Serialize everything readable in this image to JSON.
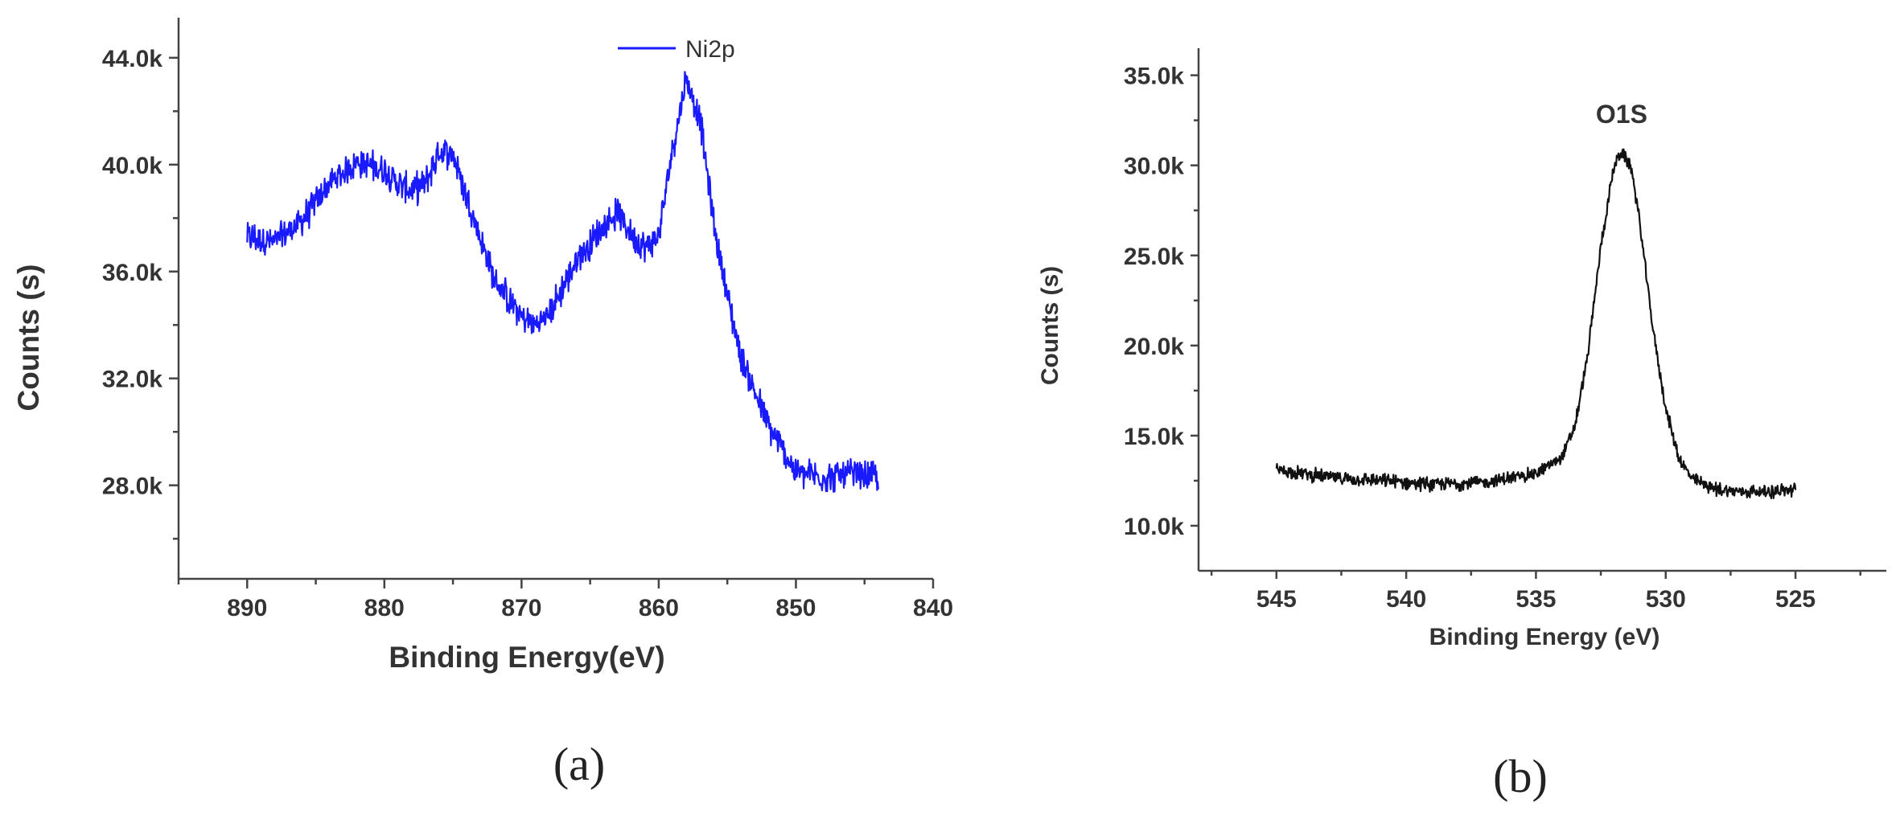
{
  "chart_data": [
    {
      "type": "line",
      "panel_label": "(a)",
      "title": "",
      "xlabel": "Binding Energy(eV)",
      "ylabel": "Counts (s)",
      "xlim": [
        895,
        840
      ],
      "ylim": [
        24500,
        45500
      ],
      "x_ticks": [
        890,
        880,
        870,
        860,
        850,
        840
      ],
      "y_ticks": [
        28000,
        32000,
        36000,
        40000,
        44000
      ],
      "y_tick_labels": [
        "28.0k",
        "32.0k",
        "36.0k",
        "40.0k",
        "44.0k"
      ],
      "legend_position": "top-right",
      "series": [
        {
          "name": "Ni2p",
          "color": "#1a1aff",
          "noise": 700,
          "x": [
            890,
            888,
            886,
            884,
            882,
            880,
            879,
            878,
            877,
            876,
            875,
            874,
            872,
            870,
            869,
            868,
            866,
            864,
            863,
            862,
            861,
            860,
            859,
            858,
            857,
            856,
            855,
            854,
            852,
            850,
            848,
            846,
            844
          ],
          "y": [
            37300,
            37100,
            37900,
            39300,
            40100,
            39800,
            39300,
            39000,
            39300,
            40500,
            40400,
            38800,
            35700,
            34300,
            34000,
            34400,
            36400,
            37700,
            38200,
            37400,
            36900,
            37300,
            40600,
            43200,
            41800,
            37800,
            35100,
            32800,
            30200,
            28500,
            28300,
            28400,
            28300
          ]
        }
      ]
    },
    {
      "type": "line",
      "panel_label": "(b)",
      "title": "",
      "xlabel": "Binding Energy (eV)",
      "ylabel": "Counts (s)",
      "xlim": [
        548,
        521.5
      ],
      "ylim": [
        7500,
        36500
      ],
      "x_ticks": [
        545,
        540,
        535,
        530,
        525
      ],
      "y_ticks": [
        10000,
        15000,
        20000,
        25000,
        30000,
        35000
      ],
      "y_tick_labels": [
        "10.0k",
        "15.0k",
        "20.0k",
        "25.0k",
        "30.0k",
        "35.0k"
      ],
      "annotations": [
        {
          "text": "O1S",
          "x": 531.7,
          "y": 32000
        }
      ],
      "series": [
        {
          "name": "O1S",
          "color": "#111111",
          "noise": 450,
          "x": [
            545,
            543,
            541,
            539,
            537,
            535,
            534,
            533.5,
            533,
            532.5,
            532,
            531.7,
            531.3,
            531,
            530.5,
            530,
            529.5,
            529,
            528,
            527,
            526,
            525
          ],
          "y": [
            13100,
            12700,
            12500,
            12300,
            12400,
            12900,
            13800,
            15500,
            19500,
            25500,
            29900,
            30800,
            29700,
            26800,
            21000,
            16500,
            13800,
            12600,
            12000,
            11900,
            11900,
            12000
          ]
        }
      ]
    }
  ]
}
